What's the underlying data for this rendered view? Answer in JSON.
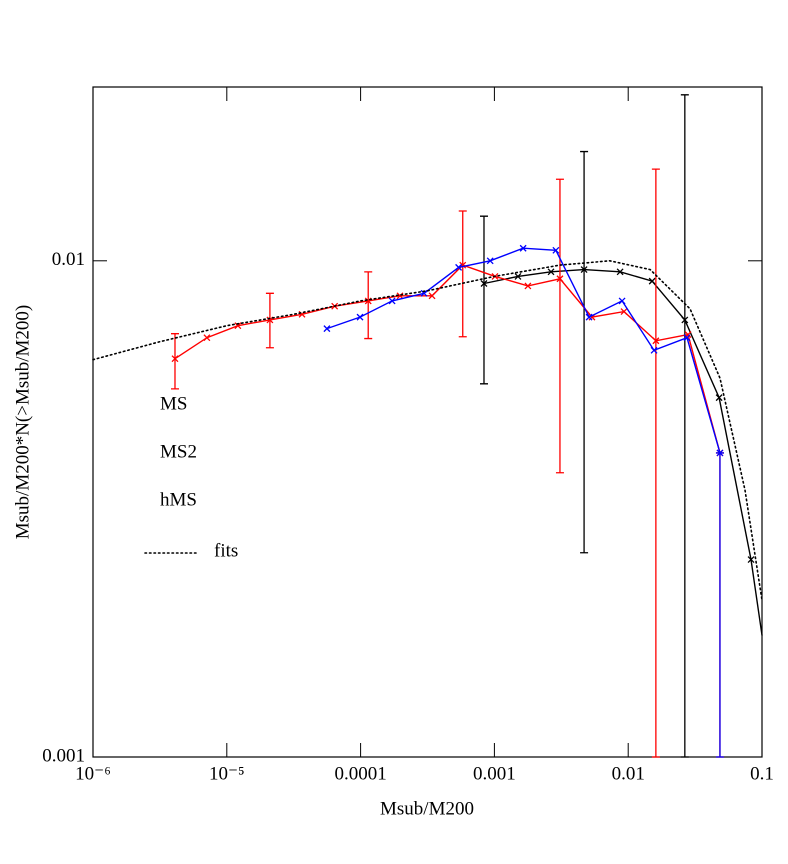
{
  "chart_data": {
    "type": "line",
    "xlabel": "Msub/M200",
    "ylabel": "Msub/M200*N(>Msub/M200)",
    "xscale": "log",
    "yscale": "log",
    "xlim": [
      1e-06,
      0.1
    ],
    "ylim": [
      0.001,
      0.0224
    ],
    "xticks": [
      {
        "value": 1e-06,
        "label": "10⁻⁶"
      },
      {
        "value": 1e-05,
        "label": "10⁻⁵"
      },
      0.0001,
      0.001,
      0.01,
      0.1
    ],
    "yticks": [
      0.001,
      0.01
    ],
    "series": [
      {
        "name": "MS",
        "color": "#000000",
        "x": [
          0.000836,
          0.0015,
          0.00265,
          0.00468,
          0.0087,
          0.0151,
          0.0265,
          0.0478,
          0.0828,
          0.1
        ],
        "values": [
          0.009,
          0.0093,
          0.0095,
          0.0096,
          0.0095,
          0.0091,
          0.0076,
          0.0053,
          0.0025,
          0.00176
        ],
        "markers": [
          true,
          true,
          true,
          true,
          true,
          true,
          true,
          true,
          true,
          false
        ],
        "err_low": [
          0.00565,
          null,
          null,
          0.00258,
          null,
          null,
          0.001,
          null,
          null,
          null
        ],
        "err_high": [
          0.0123,
          null,
          null,
          0.0166,
          null,
          null,
          0.0216,
          null,
          null,
          null
        ]
      },
      {
        "name": "MS2",
        "color": "#ff0000",
        "x": [
          4.1e-06,
          7.1e-06,
          1.21e-05,
          2.1e-05,
          3.65e-05,
          6.4e-05,
          0.000114,
          0.000197,
          0.000342,
          0.00058,
          0.00101,
          0.00178,
          0.00309,
          0.00536,
          0.0093,
          0.0161,
          0.028,
          0.0485
        ],
        "values": [
          0.00635,
          0.007,
          0.0074,
          0.0076,
          0.0078,
          0.0081,
          0.0083,
          0.0085,
          0.0085,
          0.0098,
          0.0093,
          0.0089,
          0.0092,
          0.0077,
          0.0079,
          0.0069,
          0.0071,
          0.0041
        ],
        "err_low": [
          0.00552,
          null,
          null,
          0.00668,
          null,
          null,
          0.00697,
          null,
          null,
          0.00703,
          null,
          null,
          0.00374,
          null,
          null,
          0.001,
          null,
          0.001
        ],
        "err_high": [
          0.00713,
          null,
          null,
          0.0086,
          null,
          null,
          0.0095,
          null,
          null,
          0.0126,
          null,
          null,
          0.0146,
          null,
          null,
          0.0153,
          null,
          0.0041
        ]
      },
      {
        "name": "hMS",
        "color": "#0000ff",
        "x": [
          5.6e-05,
          9.9e-05,
          0.000172,
          0.000298,
          0.00054,
          0.00093,
          0.00164,
          0.00288,
          0.0051,
          0.009,
          0.0156,
          0.0275,
          0.0485
        ],
        "values": [
          0.0073,
          0.0077,
          0.0083,
          0.0086,
          0.0097,
          0.01,
          0.0106,
          0.0105,
          0.0077,
          0.0083,
          0.0066,
          0.007,
          0.0041
        ],
        "err_low": [
          null,
          null,
          null,
          null,
          null,
          null,
          null,
          null,
          null,
          null,
          null,
          null,
          0.001
        ],
        "err_high": [
          null,
          null,
          null,
          null,
          null,
          null,
          null,
          null,
          null,
          null,
          null,
          null,
          0.0041
        ]
      },
      {
        "name": "fits",
        "color": "#000000",
        "dash": "dotted",
        "x": [
          1e-06,
          3.16e-06,
          1e-05,
          3.16e-05,
          0.0001,
          0.000316,
          0.001,
          0.0031,
          0.0073,
          0.0146,
          0.029,
          0.0485,
          0.0746,
          0.1
        ],
        "values": [
          0.00632,
          0.00687,
          0.0074,
          0.0078,
          0.0083,
          0.0087,
          0.0093,
          0.0098,
          0.01,
          0.0096,
          0.008,
          0.0058,
          0.00345,
          0.00207
        ]
      }
    ]
  }
}
